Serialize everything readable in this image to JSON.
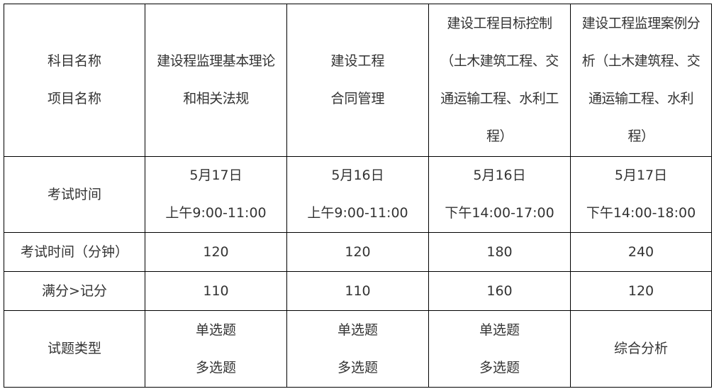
{
  "table": {
    "rows": [
      {
        "label": "科目名称\n项目名称",
        "cells": [
          "建设程监理基本理论\n和相关法规",
          "建设工程\n合同管理",
          "建设工程目标控制\n（土木建筑工程、交\n通运输工程、水利工\n程）",
          "建设工程监理案例分\n析（土木建筑程、交\n通运输工程、水利\n程）"
        ]
      },
      {
        "label": "考试时间",
        "cells": [
          "5月17日\n上午9:00-11:00",
          "5月16日\n上午9:00-11:00",
          "5月16日\n下午14:00-17:00",
          "5月17日\n下午14:00-18:00"
        ]
      },
      {
        "label": "考试时间（分钟）",
        "cells": [
          "120",
          "120",
          "180",
          "240"
        ]
      },
      {
        "label": "满分>记分",
        "cells": [
          "110",
          "110",
          "160",
          "120"
        ]
      },
      {
        "label": "试题类型",
        "cells": [
          "单选题\n多选题",
          "单选题\n多选题",
          "单选题\n多选题",
          "综合分析"
        ]
      }
    ]
  }
}
